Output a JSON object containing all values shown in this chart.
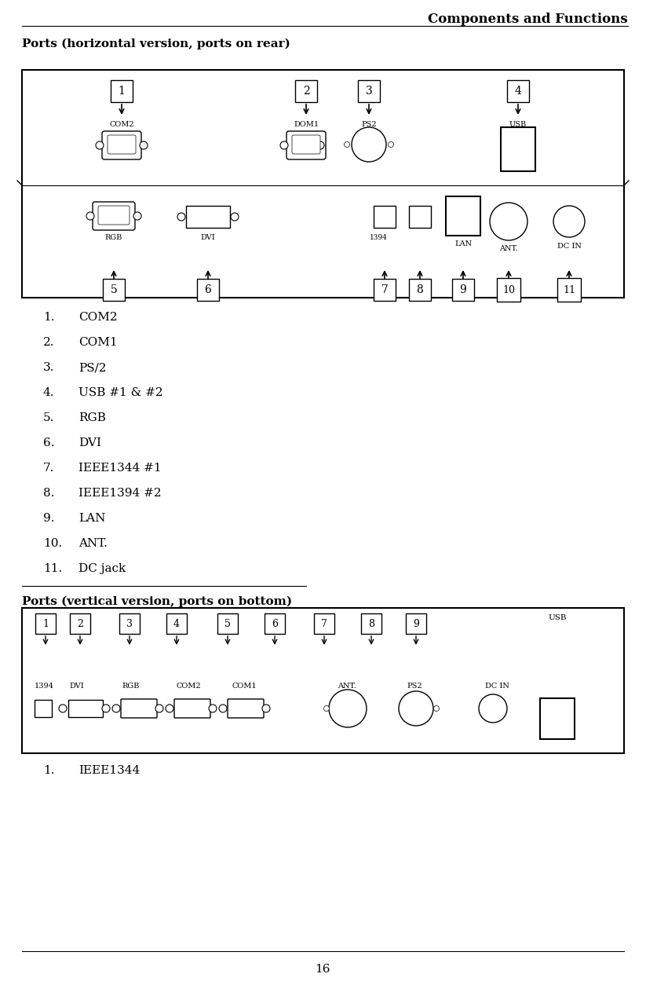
{
  "title": "Components and Functions",
  "section1_title": "Ports (horizontal version, ports on rear)",
  "section2_title": "Ports (vertical version, ports on bottom)",
  "list_items_horiz": [
    [
      "1.",
      "COM2"
    ],
    [
      "2.",
      "COM1"
    ],
    [
      "3.",
      "PS/2"
    ],
    [
      "4.",
      "USB #1 & #2"
    ],
    [
      "5.",
      "RGB"
    ],
    [
      "6.",
      "DVI"
    ],
    [
      "7.",
      "IEEE1344 #1"
    ],
    [
      "8.",
      "IEEE1394 #2"
    ],
    [
      "9.",
      "LAN"
    ],
    [
      "10.",
      "ANT."
    ],
    [
      "11.",
      "DC jack"
    ]
  ],
  "list_items_vert": [
    [
      "1.",
      "IEEE1344"
    ]
  ],
  "page_number": "16"
}
